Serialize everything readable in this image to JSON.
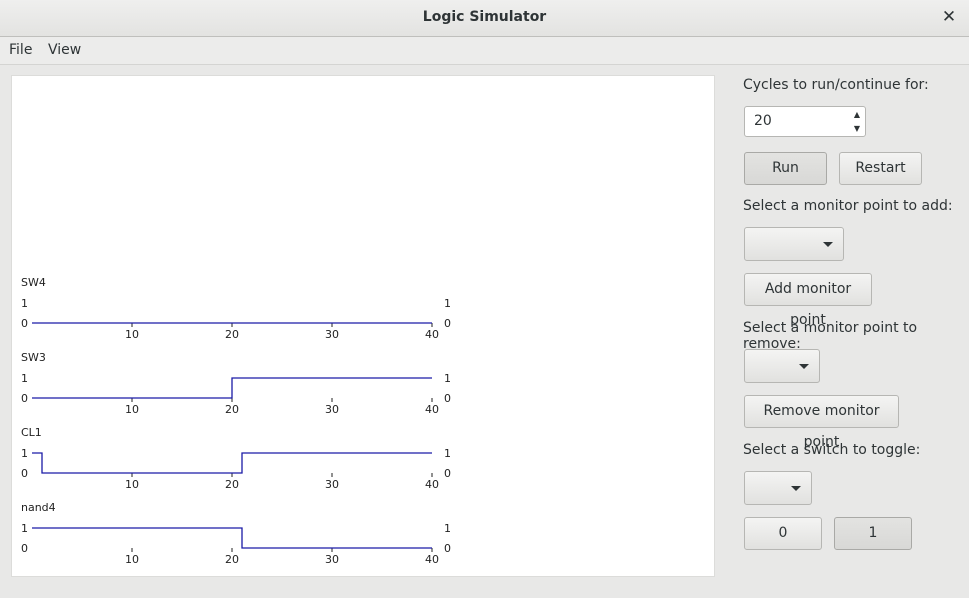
{
  "window": {
    "title": "Logic Simulator"
  },
  "menu": {
    "file": "File",
    "view": "View"
  },
  "controls": {
    "cycles_label": "Cycles to run/continue for:",
    "cycles_value": "20",
    "run": "Run",
    "restart": "Restart",
    "add_label": "Select a monitor point to add:",
    "add_button": "Add monitor point",
    "remove_label": "Select a monitor point to remove:",
    "remove_button": "Remove monitor point",
    "switch_label": "Select a switch to toggle:",
    "switch_0": "0",
    "switch_1": "1"
  },
  "chart_data": {
    "type": "line",
    "x_range": [
      0,
      40
    ],
    "x_ticks": [
      10,
      20,
      30,
      40
    ],
    "line_color": "#1a1aa6",
    "signals": [
      {
        "name": "SW4",
        "high_label": "1",
        "low_label": "0",
        "segments": [
          [
            0,
            40,
            0
          ]
        ]
      },
      {
        "name": "SW3",
        "high_label": "1",
        "low_label": "0",
        "segments": [
          [
            0,
            20,
            0
          ],
          [
            20,
            40,
            1
          ]
        ]
      },
      {
        "name": "CL1",
        "high_label": "1",
        "low_label": "0",
        "segments": [
          [
            0,
            1,
            1
          ],
          [
            1,
            21,
            0
          ],
          [
            21,
            40,
            1
          ]
        ]
      },
      {
        "name": "nand4",
        "high_label": "1",
        "low_label": "0",
        "segments": [
          [
            0,
            21,
            1
          ],
          [
            21,
            40,
            0
          ]
        ]
      }
    ]
  }
}
